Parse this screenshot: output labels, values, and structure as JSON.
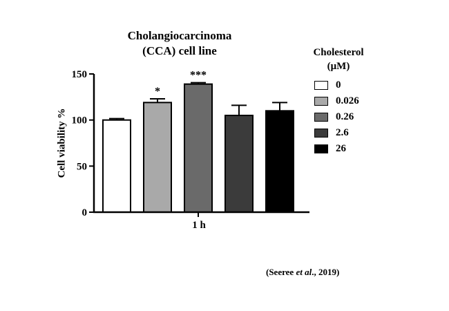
{
  "chart_data": {
    "type": "bar",
    "title_lines": [
      "Cholangiocarcinoma",
      "(CCA) cell line"
    ],
    "xlabel": "1 h",
    "ylabel": "Cell viability %",
    "ylim": [
      0,
      150
    ],
    "yticks": [
      0,
      50,
      100,
      150
    ],
    "grid": false,
    "legend_title_lines": [
      "Cholesterol",
      "(μM)"
    ],
    "legend_position": "right",
    "categories": [
      "0",
      "0.026",
      "0.26",
      "2.6",
      "26"
    ],
    "values": [
      100,
      119,
      139,
      105,
      110
    ],
    "error": [
      1.5,
      4,
      1.5,
      11,
      9
    ],
    "significance": [
      "",
      "*",
      "***",
      "",
      ""
    ],
    "colors": [
      "#ffffff",
      "#a9a9a9",
      "#6a6a6a",
      "#3b3b3b",
      "#000000"
    ]
  },
  "citation": {
    "prefix": "(Seeree ",
    "italic": "et al",
    "suffix": "., 2019)"
  }
}
